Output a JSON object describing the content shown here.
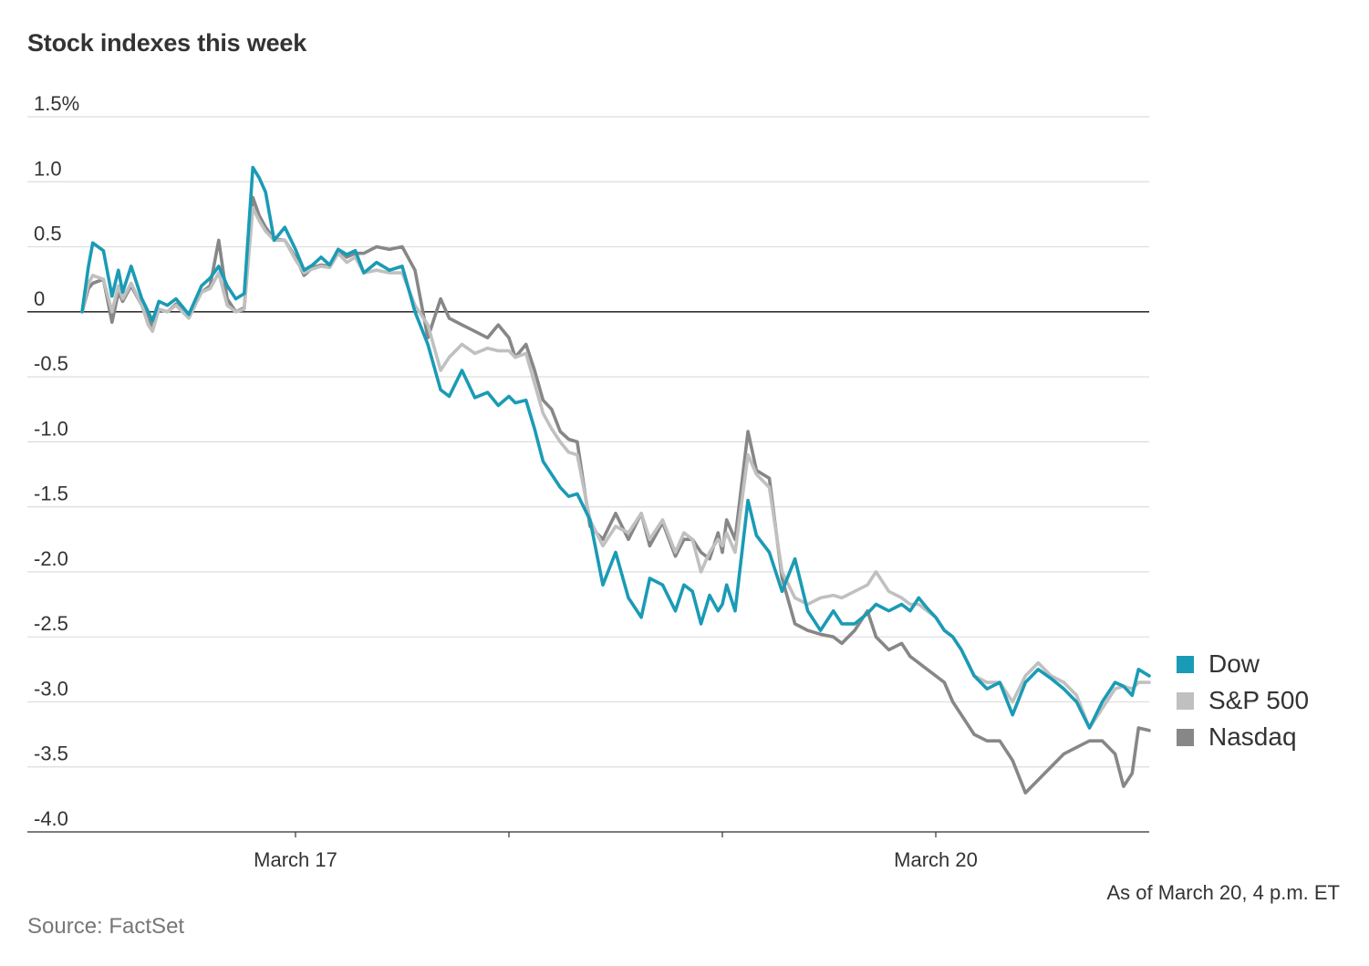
{
  "title": "Stock indexes this week",
  "note": "As of March 20, 4 p.m. ET",
  "source": "Source: FactSet",
  "colors": {
    "dow": "#1a9bb5",
    "sp500": "#c0c0c0",
    "nasdaq": "#878787",
    "grid": "#dddddd",
    "zero_line": "#333333"
  },
  "chart_data": {
    "type": "line",
    "title": "Stock indexes this week",
    "ylabel": "",
    "xlabel": "",
    "ylim": [
      -4.0,
      1.5
    ],
    "y_unit": "%",
    "xlim": [
      0,
      5
    ],
    "grid": true,
    "legend": "right",
    "y_ticks": [
      {
        "value": 1.5,
        "label": "1.5%"
      },
      {
        "value": 1.0,
        "label": "1.0"
      },
      {
        "value": 0.5,
        "label": "0.5"
      },
      {
        "value": 0,
        "label": "0"
      },
      {
        "value": -0.5,
        "label": "-0.5"
      },
      {
        "value": -1.0,
        "label": "-1.0"
      },
      {
        "value": -1.5,
        "label": "-1.5"
      },
      {
        "value": -2.0,
        "label": "-2.0"
      },
      {
        "value": -2.5,
        "label": "-2.5"
      },
      {
        "value": -3.0,
        "label": "-3.0"
      },
      {
        "value": -3.5,
        "label": "-3.5"
      },
      {
        "value": -4.0,
        "label": "-4.0"
      }
    ],
    "x_ticks": [
      {
        "value": 1,
        "label": "March 17"
      },
      {
        "value": 2,
        "label": ""
      },
      {
        "value": 3,
        "label": ""
      },
      {
        "value": 4,
        "label": "March 20"
      }
    ],
    "series": [
      {
        "name": "Dow",
        "color": "#1a9bb5",
        "x": [
          0,
          0.03,
          0.05,
          0.1,
          0.14,
          0.17,
          0.19,
          0.23,
          0.28,
          0.31,
          0.33,
          0.36,
          0.4,
          0.44,
          0.5,
          0.56,
          0.6,
          0.64,
          0.68,
          0.72,
          0.76,
          0.8,
          0.83,
          0.86,
          0.9,
          0.95,
          1.0,
          1.04,
          1.08,
          1.12,
          1.16,
          1.2,
          1.24,
          1.28,
          1.32,
          1.38,
          1.44,
          1.5,
          1.56,
          1.62,
          1.68,
          1.72,
          1.78,
          1.84,
          1.9,
          1.95,
          2.0,
          2.03,
          2.08,
          2.12,
          2.16,
          2.2,
          2.24,
          2.28,
          2.32,
          2.38,
          2.44,
          2.5,
          2.56,
          2.62,
          2.66,
          2.72,
          2.78,
          2.82,
          2.86,
          2.9,
          2.94,
          2.98,
          3.0,
          3.02,
          3.06,
          3.12,
          3.16,
          3.22,
          3.28,
          3.34,
          3.4,
          3.46,
          3.52,
          3.56,
          3.62,
          3.68,
          3.72,
          3.78,
          3.84,
          3.88,
          3.92,
          3.96,
          4.0,
          4.04,
          4.08,
          4.12,
          4.18,
          4.24,
          4.3,
          4.36,
          4.42,
          4.48,
          4.54,
          4.6,
          4.66,
          4.72,
          4.78,
          4.84,
          4.88,
          4.92,
          4.95,
          5.0
        ],
        "values": [
          0.0,
          0.35,
          0.53,
          0.47,
          0.12,
          0.32,
          0.15,
          0.35,
          0.1,
          0.0,
          -0.07,
          0.08,
          0.05,
          0.1,
          -0.02,
          0.2,
          0.26,
          0.35,
          0.2,
          0.1,
          0.14,
          1.11,
          1.03,
          0.92,
          0.55,
          0.65,
          0.48,
          0.32,
          0.36,
          0.42,
          0.36,
          0.48,
          0.44,
          0.47,
          0.3,
          0.38,
          0.32,
          0.35,
          0.0,
          -0.25,
          -0.6,
          -0.65,
          -0.45,
          -0.66,
          -0.62,
          -0.72,
          -0.65,
          -0.7,
          -0.68,
          -0.9,
          -1.15,
          -1.25,
          -1.35,
          -1.42,
          -1.4,
          -1.6,
          -2.1,
          -1.85,
          -2.2,
          -2.35,
          -2.05,
          -2.1,
          -2.3,
          -2.1,
          -2.15,
          -2.4,
          -2.18,
          -2.3,
          -2.25,
          -2.1,
          -2.3,
          -1.45,
          -1.72,
          -1.85,
          -2.15,
          -1.9,
          -2.3,
          -2.45,
          -2.3,
          -2.4,
          -2.4,
          -2.32,
          -2.25,
          -2.3,
          -2.25,
          -2.3,
          -2.2,
          -2.28,
          -2.35,
          -2.45,
          -2.5,
          -2.6,
          -2.8,
          -2.9,
          -2.85,
          -3.1,
          -2.85,
          -2.75,
          -2.82,
          -2.9,
          -3.0,
          -3.2,
          -3.0,
          -2.85,
          -2.88,
          -2.95,
          -2.75,
          -2.8
        ]
      },
      {
        "name": "S&P 500",
        "color": "#c0c0c0",
        "x": [
          0,
          0.03,
          0.05,
          0.1,
          0.14,
          0.17,
          0.19,
          0.23,
          0.28,
          0.31,
          0.33,
          0.36,
          0.4,
          0.44,
          0.5,
          0.56,
          0.6,
          0.64,
          0.68,
          0.72,
          0.76,
          0.8,
          0.83,
          0.86,
          0.9,
          0.95,
          1.0,
          1.04,
          1.08,
          1.12,
          1.16,
          1.2,
          1.24,
          1.28,
          1.32,
          1.38,
          1.44,
          1.5,
          1.56,
          1.62,
          1.68,
          1.72,
          1.78,
          1.84,
          1.9,
          1.95,
          2.0,
          2.03,
          2.08,
          2.12,
          2.16,
          2.2,
          2.24,
          2.28,
          2.32,
          2.38,
          2.44,
          2.5,
          2.56,
          2.62,
          2.66,
          2.72,
          2.78,
          2.82,
          2.86,
          2.9,
          2.94,
          2.98,
          3.0,
          3.02,
          3.06,
          3.12,
          3.16,
          3.22,
          3.28,
          3.34,
          3.4,
          3.46,
          3.52,
          3.56,
          3.62,
          3.68,
          3.72,
          3.78,
          3.84,
          3.88,
          3.92,
          3.96,
          4.0,
          4.04,
          4.08,
          4.12,
          4.18,
          4.24,
          4.3,
          4.36,
          4.42,
          4.48,
          4.54,
          4.6,
          4.66,
          4.72,
          4.78,
          4.84,
          4.88,
          4.92,
          4.95,
          5.0
        ],
        "values": [
          0.0,
          0.22,
          0.28,
          0.25,
          0.0,
          0.2,
          0.1,
          0.22,
          0.05,
          -0.1,
          -0.15,
          0.02,
          0.0,
          0.05,
          -0.05,
          0.15,
          0.18,
          0.3,
          0.05,
          0.0,
          0.02,
          0.8,
          0.7,
          0.62,
          0.55,
          0.55,
          0.4,
          0.3,
          0.33,
          0.35,
          0.34,
          0.45,
          0.38,
          0.42,
          0.3,
          0.32,
          0.3,
          0.3,
          0.05,
          -0.1,
          -0.45,
          -0.35,
          -0.25,
          -0.32,
          -0.28,
          -0.3,
          -0.3,
          -0.35,
          -0.32,
          -0.55,
          -0.78,
          -0.9,
          -1.0,
          -1.08,
          -1.1,
          -1.6,
          -1.8,
          -1.65,
          -1.7,
          -1.55,
          -1.75,
          -1.6,
          -1.85,
          -1.7,
          -1.75,
          -2.0,
          -1.85,
          -1.75,
          -1.8,
          -1.7,
          -1.85,
          -1.1,
          -1.25,
          -1.35,
          -2.0,
          -2.2,
          -2.25,
          -2.2,
          -2.18,
          -2.2,
          -2.15,
          -2.1,
          -2.0,
          -2.15,
          -2.2,
          -2.25,
          -2.25,
          -2.3,
          -2.35,
          -2.45,
          -2.5,
          -2.6,
          -2.8,
          -2.85,
          -2.85,
          -3.0,
          -2.8,
          -2.7,
          -2.8,
          -2.85,
          -2.95,
          -3.2,
          -3.05,
          -2.9,
          -2.88,
          -2.9,
          -2.85,
          -2.85
        ]
      },
      {
        "name": "Nasdaq",
        "color": "#878787",
        "x": [
          0,
          0.03,
          0.05,
          0.1,
          0.14,
          0.17,
          0.19,
          0.23,
          0.28,
          0.31,
          0.33,
          0.36,
          0.4,
          0.44,
          0.5,
          0.56,
          0.6,
          0.64,
          0.68,
          0.72,
          0.76,
          0.8,
          0.83,
          0.86,
          0.9,
          0.95,
          1.0,
          1.04,
          1.08,
          1.12,
          1.16,
          1.2,
          1.24,
          1.28,
          1.32,
          1.38,
          1.44,
          1.5,
          1.56,
          1.62,
          1.68,
          1.72,
          1.78,
          1.84,
          1.9,
          1.95,
          2.0,
          2.03,
          2.08,
          2.12,
          2.16,
          2.2,
          2.24,
          2.28,
          2.32,
          2.38,
          2.44,
          2.5,
          2.56,
          2.62,
          2.66,
          2.72,
          2.78,
          2.82,
          2.86,
          2.9,
          2.94,
          2.98,
          3.0,
          3.02,
          3.06,
          3.12,
          3.16,
          3.22,
          3.28,
          3.34,
          3.4,
          3.46,
          3.52,
          3.56,
          3.62,
          3.68,
          3.72,
          3.78,
          3.84,
          3.88,
          3.92,
          3.96,
          4.0,
          4.04,
          4.08,
          4.12,
          4.18,
          4.24,
          4.3,
          4.36,
          4.42,
          4.48,
          4.54,
          4.6,
          4.66,
          4.72,
          4.78,
          4.84,
          4.88,
          4.92,
          4.95,
          5.0
        ],
        "values": [
          0.0,
          0.18,
          0.22,
          0.25,
          -0.08,
          0.15,
          0.08,
          0.2,
          0.05,
          -0.05,
          -0.12,
          0.02,
          0.0,
          0.06,
          -0.02,
          0.15,
          0.2,
          0.55,
          0.1,
          0.0,
          0.03,
          0.88,
          0.74,
          0.65,
          0.56,
          0.55,
          0.42,
          0.28,
          0.34,
          0.36,
          0.35,
          0.48,
          0.42,
          0.45,
          0.45,
          0.5,
          0.48,
          0.5,
          0.32,
          -0.2,
          0.1,
          -0.05,
          -0.1,
          -0.15,
          -0.2,
          -0.1,
          -0.2,
          -0.35,
          -0.25,
          -0.45,
          -0.68,
          -0.75,
          -0.92,
          -0.98,
          -1.0,
          -1.65,
          -1.75,
          -1.55,
          -1.75,
          -1.55,
          -1.8,
          -1.62,
          -1.88,
          -1.75,
          -1.75,
          -1.85,
          -1.9,
          -1.7,
          -1.85,
          -1.6,
          -1.75,
          -0.92,
          -1.22,
          -1.28,
          -2.05,
          -2.4,
          -2.45,
          -2.48,
          -2.5,
          -2.55,
          -2.45,
          -2.3,
          -2.5,
          -2.6,
          -2.55,
          -2.65,
          -2.7,
          -2.75,
          -2.8,
          -2.85,
          -3.0,
          -3.1,
          -3.25,
          -3.3,
          -3.3,
          -3.45,
          -3.7,
          -3.6,
          -3.5,
          -3.4,
          -3.35,
          -3.3,
          -3.3,
          -3.4,
          -3.65,
          -3.55,
          -3.2,
          -3.22
        ]
      }
    ]
  }
}
